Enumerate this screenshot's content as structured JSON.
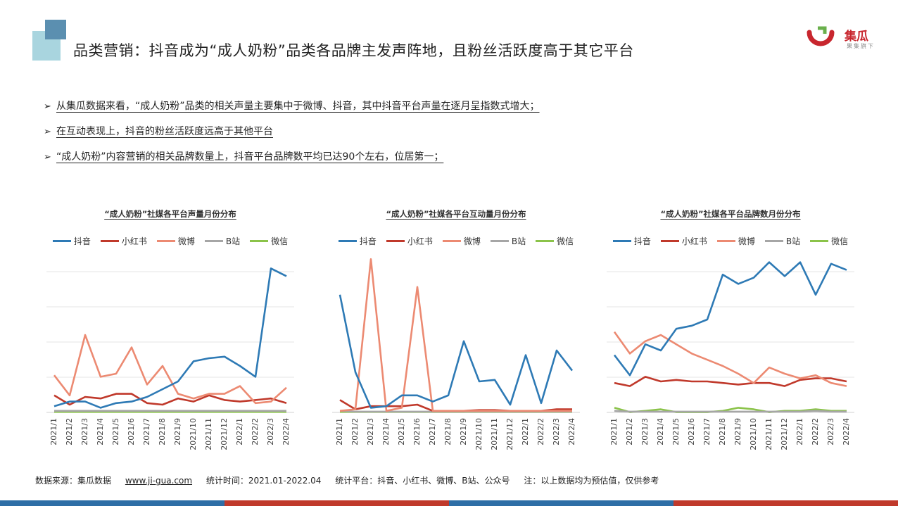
{
  "page": {
    "title": "品类营销：抖音成为“成人奶粉”品类各品牌主发声阵地，且粉丝活跃度高于其它平台",
    "logo_name": "集瓜",
    "logo_sub": "果集旗下",
    "bullets": [
      "从集瓜数据来看，“成人奶粉”品类的相关声量主要集中于微博、抖音，其中抖音平台声量在逐月呈指数式增大；",
      "在互动表现上，抖音的粉丝活跃度远高于其他平台",
      "“成人奶粉”内容营销的相关品牌数量上，抖音平台品牌数平均已达90个左右，位居第一；"
    ],
    "bullet_marker": "➢",
    "footer": {
      "source": "数据来源：集瓜数据",
      "url": "www.ji-gua.com",
      "time": "统计时间：2021.01-2022.04",
      "platforms": "统计平台：抖音、小红书、微博、B站、公众号",
      "note": "注：以上数据均为预估值，仅供参考"
    },
    "colors": {
      "douyin": "#2e7ab5",
      "xiaohongshu": "#c0392b",
      "weibo": "#ec8a72",
      "bilibili": "#a6a6a6",
      "weixin": "#8bc34a",
      "accent_bar": [
        "#2e6ea6",
        "#c0392b",
        "#2e6ea6",
        "#c0392b"
      ]
    }
  },
  "chart_data": [
    {
      "type": "line",
      "title": "“成人奶粉”社媒各平台声量月份分布",
      "categories": [
        "2021/1",
        "2021/2",
        "2021/3",
        "2021/4",
        "2021/5",
        "2021/6",
        "2021/7",
        "2021/8",
        "2021/9",
        "2021/10",
        "2021/11",
        "2021/12",
        "2022/1",
        "2022/2",
        "2022/3",
        "2022/4"
      ],
      "grid": true,
      "legend_position": "top",
      "ylim": [
        0,
        100
      ],
      "series": [
        {
          "name": "抖音",
          "color_key": "douyin",
          "values": [
            4,
            7,
            7,
            3,
            6,
            7,
            10,
            15,
            20,
            33,
            35,
            36,
            30,
            23,
            93,
            88
          ]
        },
        {
          "name": "小红书",
          "color_key": "xiaohongshu",
          "values": [
            11,
            5,
            10,
            9,
            12,
            12,
            6,
            5,
            9,
            7,
            11,
            8,
            7,
            8,
            9,
            6
          ]
        },
        {
          "name": "微博",
          "color_key": "weibo",
          "values": [
            24,
            11,
            50,
            23,
            25,
            42,
            18,
            30,
            12,
            9,
            12,
            12,
            17,
            6,
            7,
            16
          ]
        },
        {
          "name": "B站",
          "color_key": "bilibili",
          "values": [
            1,
            1,
            1,
            1,
            1,
            1,
            1,
            1,
            1,
            1,
            1,
            1,
            1,
            1,
            1,
            1
          ]
        },
        {
          "name": "微信",
          "color_key": "weixin",
          "values": [
            0.3,
            0.3,
            0.3,
            0.3,
            0.3,
            0.3,
            0.3,
            0.3,
            0.3,
            0.3,
            0.3,
            0.3,
            0.3,
            0.3,
            0.3,
            0.3
          ]
        }
      ]
    },
    {
      "type": "line",
      "title": "“成人奶粉”社媒各平台互动量月份分布",
      "categories": [
        "2021/1",
        "2021/2",
        "2021/3",
        "2021/4",
        "2021/5",
        "2021/6",
        "2021/7",
        "2021/8",
        "2021/9",
        "2021/10",
        "2021/11",
        "2021/12",
        "2022/1",
        "2022/2",
        "2022/3",
        "2022/4"
      ],
      "grid": false,
      "legend_position": "top",
      "ylim": [
        0,
        100
      ],
      "series": [
        {
          "name": "抖音",
          "color_key": "douyin",
          "values": [
            76,
            26,
            3,
            4,
            11,
            11,
            7,
            11,
            46,
            20,
            21,
            5,
            37,
            6,
            40,
            27
          ]
        },
        {
          "name": "小红书",
          "color_key": "xiaohongshu",
          "values": [
            8,
            2,
            4,
            4,
            4,
            5,
            1,
            1,
            1,
            1.5,
            1.5,
            1,
            1,
            1,
            2,
            2
          ]
        },
        {
          "name": "微博",
          "color_key": "weibo",
          "values": [
            1,
            2,
            99,
            1,
            3,
            81,
            1,
            1,
            1,
            1,
            1,
            1,
            1,
            1,
            1,
            1
          ]
        },
        {
          "name": "B站",
          "color_key": "bilibili",
          "values": [
            1,
            0.5,
            0.5,
            0.5,
            0.5,
            0.5,
            0.5,
            0.5,
            0.5,
            0.5,
            0.5,
            0.5,
            0.5,
            0.5,
            0.5,
            0.5
          ]
        },
        {
          "name": "微信",
          "color_key": "weixin",
          "values": [
            0.3,
            0.3,
            0.3,
            0.3,
            0.3,
            0.3,
            0.3,
            0.3,
            0.3,
            0.3,
            0.3,
            0.3,
            0.3,
            0.3,
            0.3,
            0.3
          ]
        }
      ]
    },
    {
      "type": "line",
      "title": "“成人奶粉”社媒各平台品牌数月份分布",
      "categories": [
        "2021/1",
        "2021/2",
        "2021/3",
        "2021/4",
        "2021/5",
        "2021/6",
        "2021/7",
        "2021/8",
        "2021/9",
        "2021/10",
        "2021/11",
        "2021/12",
        "2022/1",
        "2022/2",
        "2022/3",
        "2022/4"
      ],
      "grid": true,
      "legend_position": "top",
      "ylim": [
        0,
        100
      ],
      "series": [
        {
          "name": "抖音",
          "color_key": "douyin",
          "values": [
            37,
            24,
            44,
            40,
            54,
            56,
            60,
            89,
            83,
            87,
            97,
            88,
            97,
            76,
            96,
            92
          ]
        },
        {
          "name": "小红书",
          "color_key": "xiaohongshu",
          "values": [
            19,
            17,
            23,
            20,
            21,
            20,
            20,
            19,
            18,
            19,
            19,
            17,
            21,
            22,
            22,
            20
          ]
        },
        {
          "name": "微博",
          "color_key": "weibo",
          "values": [
            52,
            38,
            46,
            50,
            44,
            38,
            34,
            30,
            25,
            19,
            29,
            25,
            22,
            24,
            19,
            17
          ]
        },
        {
          "name": "B站",
          "color_key": "bilibili",
          "values": [
            1,
            0.5,
            0.5,
            0.5,
            0.5,
            0.5,
            0.5,
            0.5,
            0.5,
            0.5,
            0.5,
            0.5,
            0.5,
            1,
            0.5,
            0.5
          ]
        },
        {
          "name": "微信",
          "color_key": "weixin",
          "values": [
            3,
            0.2,
            1,
            2,
            0.2,
            0.2,
            0.2,
            1,
            3,
            2,
            0.2,
            1,
            1,
            2,
            1,
            1
          ]
        }
      ]
    }
  ]
}
